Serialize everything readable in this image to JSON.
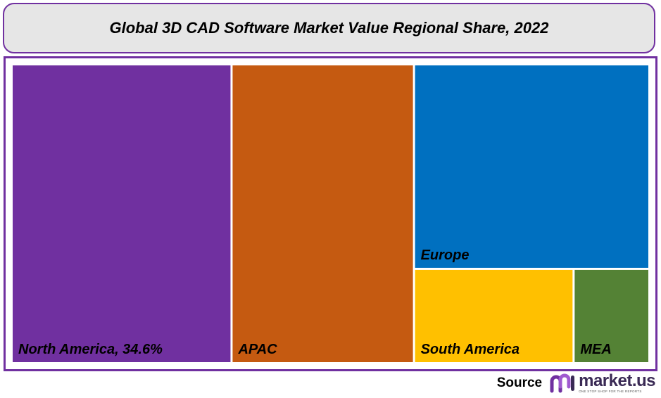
{
  "header": {
    "title": "Global 3D CAD Software Market Value Regional Share, 2022"
  },
  "chart_data": {
    "type": "treemap",
    "title": "Global 3D CAD Software Market Value Regional Share, 2022",
    "regions": [
      {
        "name": "North America",
        "label": "North America, 34.6%",
        "share": 34.6,
        "color": "#7030a0"
      },
      {
        "name": "APAC",
        "label": "APAC",
        "share": 28.7,
        "color": "#c55a11"
      },
      {
        "name": "Europe",
        "label": "Europe",
        "share": 25.3,
        "color": "#0070c0"
      },
      {
        "name": "South America",
        "label": "South America",
        "share": 7.8,
        "color": "#ffc000"
      },
      {
        "name": "MEA",
        "label": "MEA",
        "share": 3.6,
        "color": "#548235"
      }
    ]
  },
  "footer": {
    "source_label": "Source",
    "brand_name": "market.us",
    "brand_tagline": "ONE STOP SHOP FOR THE REPORTS"
  },
  "colors": {
    "frame": "#7030a0",
    "title_bg": "#e6e6e6",
    "brand": "#3a2a55"
  }
}
